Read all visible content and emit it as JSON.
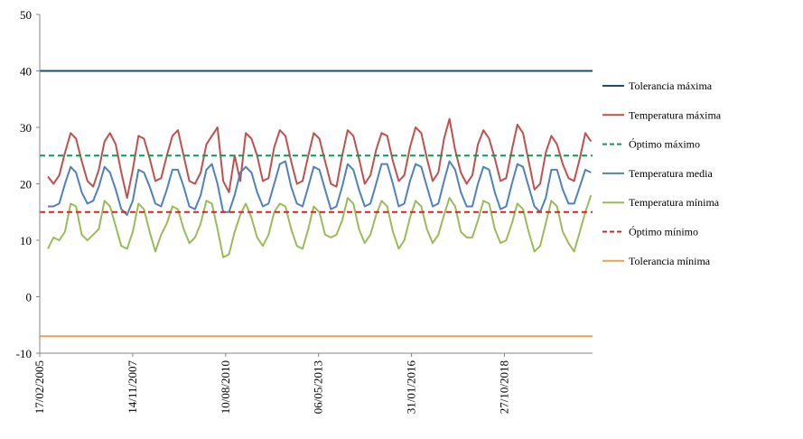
{
  "chart_data": {
    "type": "line",
    "title": "",
    "xlabel": "",
    "ylabel": "",
    "ylim": [
      -10,
      50
    ],
    "yticks": [
      -10,
      0,
      10,
      20,
      30,
      40,
      50
    ],
    "xrange": [
      "2005-02-17",
      "2021-06-01"
    ],
    "xtick_labels": [
      "17/02/2005",
      "14/11/2007",
      "10/08/2010",
      "06/05/2013",
      "31/01/2016",
      "27/10/2018"
    ],
    "xtick_dates": [
      "2005-02-17",
      "2007-11-14",
      "2010-08-10",
      "2013-05-06",
      "2016-01-31",
      "2018-10-27"
    ],
    "grid": false,
    "legend_position": "right",
    "series": [
      {
        "name": "Tolerancia máxima",
        "color": "#1f4e6b",
        "style": "solid",
        "constant": 40
      },
      {
        "name": "Temperatura máxima",
        "color": "#c0504d",
        "style": "solid",
        "x": [
          "2005-05",
          "2005-07",
          "2005-09",
          "2005-11",
          "2006-01",
          "2006-03",
          "2006-05",
          "2006-07",
          "2006-09",
          "2006-11",
          "2007-01",
          "2007-03",
          "2007-05",
          "2007-07",
          "2007-09",
          "2007-11",
          "2008-01",
          "2008-03",
          "2008-05",
          "2008-07",
          "2008-09",
          "2008-11",
          "2009-01",
          "2009-03",
          "2009-05",
          "2009-07",
          "2009-09",
          "2009-11",
          "2010-01",
          "2010-03",
          "2010-05",
          "2010-07",
          "2010-09",
          "2010-11",
          "2011-01",
          "2011-03",
          "2011-05",
          "2011-07",
          "2011-09",
          "2011-11",
          "2012-01",
          "2012-03",
          "2012-05",
          "2012-07",
          "2012-09",
          "2012-11",
          "2013-01",
          "2013-03",
          "2013-05",
          "2013-07",
          "2013-09",
          "2013-11",
          "2014-01",
          "2014-03",
          "2014-05",
          "2014-07",
          "2014-09",
          "2014-11",
          "2015-01",
          "2015-03",
          "2015-05",
          "2015-07",
          "2015-09",
          "2015-11",
          "2016-01",
          "2016-03",
          "2016-05",
          "2016-07",
          "2016-09",
          "2016-11",
          "2017-01",
          "2017-03",
          "2017-05",
          "2017-07",
          "2017-09",
          "2017-11",
          "2018-01",
          "2018-03",
          "2018-05",
          "2018-07",
          "2018-09",
          "2018-11",
          "2019-01",
          "2019-03",
          "2019-05",
          "2019-07",
          "2019-09",
          "2019-11",
          "2020-01",
          "2020-03",
          "2020-05",
          "2020-07",
          "2020-09",
          "2020-11",
          "2021-01",
          "2021-03",
          "2021-05"
        ],
        "values": [
          21.3,
          20.0,
          21.5,
          25.5,
          29.0,
          28.0,
          24.0,
          20.5,
          19.5,
          22.5,
          27.5,
          29.0,
          27.0,
          22.0,
          17.5,
          22.5,
          28.5,
          28.0,
          24.5,
          20.5,
          21.0,
          25.0,
          28.5,
          29.5,
          25.0,
          20.5,
          20.0,
          22.0,
          27.0,
          28.5,
          30.0,
          20.5,
          18.5,
          25.0,
          20.5,
          29.0,
          28.0,
          25.0,
          20.5,
          21.0,
          26.5,
          29.5,
          28.5,
          24.0,
          20.0,
          20.5,
          25.0,
          29.0,
          28.0,
          24.0,
          20.0,
          19.5,
          25.0,
          29.5,
          28.5,
          24.5,
          20.0,
          21.5,
          26.0,
          29.0,
          28.5,
          24.0,
          20.5,
          21.5,
          26.5,
          30.0,
          29.0,
          24.5,
          20.5,
          22.0,
          28.0,
          31.5,
          26.0,
          22.0,
          20.0,
          21.5,
          27.0,
          29.5,
          28.0,
          24.5,
          20.5,
          21.0,
          26.0,
          30.5,
          29.0,
          24.0,
          19.0,
          20.0,
          25.5,
          28.5,
          27.0,
          23.5,
          21.0,
          20.5,
          24.5,
          29.0,
          27.5
        ]
      },
      {
        "name": "Óptimo máximo",
        "color": "#00a050",
        "style": "dashed",
        "constant": 25
      },
      {
        "name": "Temperatura media",
        "color": "#4f81bd",
        "style": "solid",
        "x": [
          "2005-05",
          "2005-07",
          "2005-09",
          "2005-11",
          "2006-01",
          "2006-03",
          "2006-05",
          "2006-07",
          "2006-09",
          "2006-11",
          "2007-01",
          "2007-03",
          "2007-05",
          "2007-07",
          "2007-09",
          "2007-11",
          "2008-01",
          "2008-03",
          "2008-05",
          "2008-07",
          "2008-09",
          "2008-11",
          "2009-01",
          "2009-03",
          "2009-05",
          "2009-07",
          "2009-09",
          "2009-11",
          "2010-01",
          "2010-03",
          "2010-05",
          "2010-07",
          "2010-09",
          "2010-11",
          "2011-01",
          "2011-03",
          "2011-05",
          "2011-07",
          "2011-09",
          "2011-11",
          "2012-01",
          "2012-03",
          "2012-05",
          "2012-07",
          "2012-09",
          "2012-11",
          "2013-01",
          "2013-03",
          "2013-05",
          "2013-07",
          "2013-09",
          "2013-11",
          "2014-01",
          "2014-03",
          "2014-05",
          "2014-07",
          "2014-09",
          "2014-11",
          "2015-01",
          "2015-03",
          "2015-05",
          "2015-07",
          "2015-09",
          "2015-11",
          "2016-01",
          "2016-03",
          "2016-05",
          "2016-07",
          "2016-09",
          "2016-11",
          "2017-01",
          "2017-03",
          "2017-05",
          "2017-07",
          "2017-09",
          "2017-11",
          "2018-01",
          "2018-03",
          "2018-05",
          "2018-07",
          "2018-09",
          "2018-11",
          "2019-01",
          "2019-03",
          "2019-05",
          "2019-07",
          "2019-09",
          "2019-11",
          "2020-01",
          "2020-03",
          "2020-05",
          "2020-07",
          "2020-09",
          "2020-11",
          "2021-01",
          "2021-03",
          "2021-05"
        ],
        "values": [
          16.0,
          16.0,
          16.5,
          20.0,
          23.0,
          22.0,
          18.5,
          16.5,
          17.0,
          19.5,
          23.0,
          22.0,
          19.0,
          15.5,
          14.5,
          17.0,
          22.5,
          22.0,
          19.5,
          16.5,
          16.0,
          19.0,
          22.5,
          22.5,
          19.5,
          16.0,
          15.5,
          18.0,
          22.5,
          23.5,
          20.0,
          15.0,
          15.0,
          18.0,
          22.0,
          23.0,
          22.0,
          18.5,
          16.0,
          16.5,
          20.0,
          23.5,
          24.0,
          19.5,
          16.5,
          16.0,
          19.5,
          23.0,
          22.5,
          19.0,
          15.5,
          16.0,
          19.5,
          23.5,
          22.5,
          19.0,
          16.0,
          16.5,
          20.0,
          23.5,
          23.5,
          20.0,
          16.0,
          16.5,
          20.5,
          23.5,
          23.0,
          19.5,
          16.0,
          16.5,
          20.5,
          24.0,
          22.5,
          18.5,
          16.0,
          16.0,
          20.0,
          23.0,
          22.5,
          18.5,
          15.5,
          16.0,
          20.0,
          23.5,
          23.0,
          19.5,
          16.0,
          15.0,
          17.5,
          22.5,
          22.5,
          19.0,
          16.5,
          16.5,
          19.5,
          22.5,
          22.0
        ]
      },
      {
        "name": "Temperatura mínima",
        "color": "#9bbb59",
        "style": "solid",
        "x": [
          "2005-05",
          "2005-07",
          "2005-09",
          "2005-11",
          "2006-01",
          "2006-03",
          "2006-05",
          "2006-07",
          "2006-09",
          "2006-11",
          "2007-01",
          "2007-03",
          "2007-05",
          "2007-07",
          "2007-09",
          "2007-11",
          "2008-01",
          "2008-03",
          "2008-05",
          "2008-07",
          "2008-09",
          "2008-11",
          "2009-01",
          "2009-03",
          "2009-05",
          "2009-07",
          "2009-09",
          "2009-11",
          "2010-01",
          "2010-03",
          "2010-05",
          "2010-07",
          "2010-09",
          "2010-11",
          "2011-01",
          "2011-03",
          "2011-05",
          "2011-07",
          "2011-09",
          "2011-11",
          "2012-01",
          "2012-03",
          "2012-05",
          "2012-07",
          "2012-09",
          "2012-11",
          "2013-01",
          "2013-03",
          "2013-05",
          "2013-07",
          "2013-09",
          "2013-11",
          "2014-01",
          "2014-03",
          "2014-05",
          "2014-07",
          "2014-09",
          "2014-11",
          "2015-01",
          "2015-03",
          "2015-05",
          "2015-07",
          "2015-09",
          "2015-11",
          "2016-01",
          "2016-03",
          "2016-05",
          "2016-07",
          "2016-09",
          "2016-11",
          "2017-01",
          "2017-03",
          "2017-05",
          "2017-07",
          "2017-09",
          "2017-11",
          "2018-01",
          "2018-03",
          "2018-05",
          "2018-07",
          "2018-09",
          "2018-11",
          "2019-01",
          "2019-03",
          "2019-05",
          "2019-07",
          "2019-09",
          "2019-11",
          "2020-01",
          "2020-03",
          "2020-05",
          "2020-07",
          "2020-09",
          "2020-11",
          "2021-01",
          "2021-03",
          "2021-05"
        ],
        "values": [
          8.5,
          10.5,
          10.0,
          11.5,
          16.5,
          16.0,
          11.0,
          10.0,
          11.0,
          12.0,
          17.0,
          16.0,
          12.5,
          9.0,
          8.5,
          11.5,
          16.5,
          15.5,
          11.5,
          8.0,
          11.0,
          13.0,
          16.0,
          15.5,
          12.0,
          9.5,
          10.5,
          13.0,
          17.0,
          16.5,
          12.0,
          7.0,
          7.5,
          11.5,
          14.5,
          16.5,
          14.0,
          10.5,
          9.0,
          11.0,
          15.0,
          16.5,
          16.0,
          12.0,
          9.0,
          8.5,
          12.0,
          16.0,
          15.0,
          11.0,
          10.5,
          11.0,
          13.5,
          17.5,
          16.5,
          12.0,
          9.5,
          11.0,
          14.5,
          17.0,
          16.0,
          11.5,
          8.5,
          10.0,
          14.0,
          17.0,
          16.0,
          12.0,
          9.5,
          11.0,
          14.5,
          17.5,
          16.0,
          11.5,
          10.5,
          10.5,
          13.5,
          17.0,
          16.5,
          12.0,
          9.5,
          10.0,
          13.0,
          16.5,
          15.5,
          11.5,
          8.0,
          9.0,
          13.0,
          17.0,
          16.0,
          11.5,
          9.5,
          8.0,
          11.5,
          15.0,
          18.0
        ]
      },
      {
        "name": "Óptimo mínimo",
        "color": "#e02020",
        "style": "dashed",
        "constant": 15
      },
      {
        "name": "Tolerancia mínima",
        "color": "#f0a050",
        "style": "solid",
        "constant": -7
      }
    ]
  }
}
